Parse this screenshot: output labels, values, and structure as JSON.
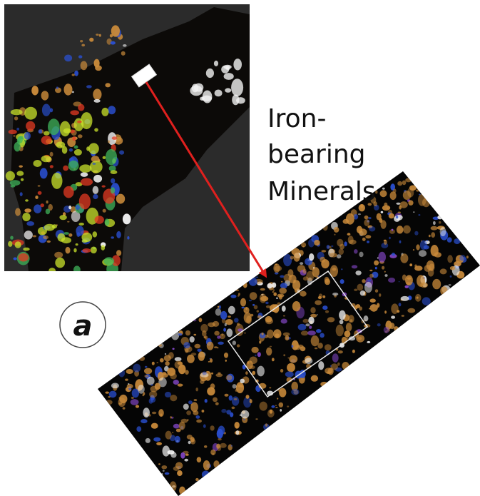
{
  "annotation": {
    "line1": "Iron-",
    "line2": "bearing",
    "line3": "Minerals"
  },
  "panel_label": "a",
  "colors": {
    "arrow": "#e0201e",
    "overview_background": "#2b2b2b",
    "detail_background": "#050505",
    "iron_orange": "#c98a3a",
    "iron_blue": "#2a4fd0",
    "iron_yellow_green": "#c9e32b",
    "iron_red": "#e33a22",
    "iron_white": "#f2f2f2"
  },
  "legend_icons": {
    "arrow": "arrow-icon",
    "panel_label_circle": "circle-badge-icon"
  }
}
